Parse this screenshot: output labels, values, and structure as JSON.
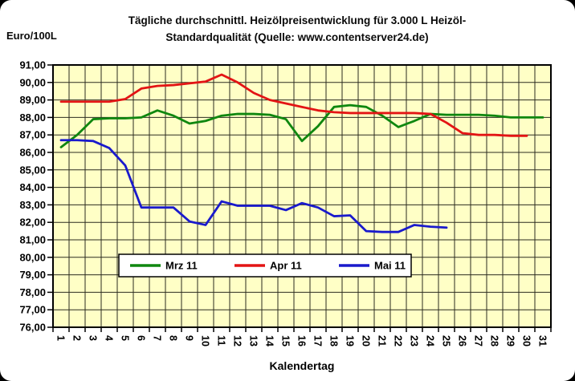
{
  "frame": {
    "outer_bg": "#000000",
    "card_bg": "#ffffff"
  },
  "chart_data": {
    "type": "line",
    "title": "Tägliche durchschnittl. Heizölpreisentwicklung für 3.000 L Heizöl-Standardqualität (Quelle: www.contentserver24.de)",
    "title_lines": [
      "Tägliche durchschnittl. Heizölpreisentwicklung für 3.000 L Heizöl-",
      "Standardqualität (Quelle: www.contentserver24.de)"
    ],
    "xlabel": "Kalendertag",
    "ylabel": "Euro/100L",
    "ylim": [
      76,
      91
    ],
    "ytick_step": 1,
    "y_tick_labels": [
      "91,00",
      "90,00",
      "89,00",
      "88,00",
      "87,00",
      "86,00",
      "85,00",
      "84,00",
      "83,00",
      "82,00",
      "81,00",
      "80,00",
      "79,00",
      "78,00",
      "77,00",
      "76,00"
    ],
    "x_categories": [
      1,
      2,
      3,
      4,
      5,
      6,
      7,
      8,
      9,
      10,
      11,
      12,
      13,
      14,
      15,
      16,
      17,
      18,
      19,
      20,
      21,
      22,
      23,
      24,
      25,
      26,
      27,
      28,
      29,
      30,
      31
    ],
    "grid": true,
    "plot_bg": "#ffffc6",
    "gridline_color": "#2b2b20",
    "legend_position": "inside-bottom-center",
    "series": [
      {
        "name": "Mrz 11",
        "color": "#0f870f",
        "values": [
          86.3,
          87.0,
          87.9,
          87.95,
          87.95,
          88.0,
          88.4,
          88.1,
          87.65,
          87.8,
          88.1,
          88.2,
          88.2,
          88.15,
          87.9,
          86.65,
          87.5,
          88.6,
          88.7,
          88.6,
          88.1,
          87.45,
          87.8,
          88.2,
          88.15,
          88.15,
          88.15,
          88.1,
          88.0,
          88.0,
          88.0
        ]
      },
      {
        "name": "Apr 11",
        "color": "#e31414",
        "values": [
          88.9,
          88.9,
          88.9,
          88.9,
          89.05,
          89.65,
          89.8,
          89.85,
          89.95,
          90.05,
          90.45,
          90.0,
          89.4,
          89.0,
          88.8,
          88.6,
          88.4,
          88.3,
          88.25,
          88.25,
          88.25,
          88.25,
          88.25,
          88.2,
          87.7,
          87.1,
          87.0,
          87.0,
          86.95,
          86.95
        ]
      },
      {
        "name": "Mai 11",
        "color": "#1a1acc",
        "values": [
          86.7,
          86.7,
          86.65,
          86.25,
          85.25,
          82.85,
          82.85,
          82.85,
          82.05,
          81.85,
          83.2,
          82.95,
          82.95,
          82.95,
          82.7,
          83.1,
          82.85,
          82.35,
          82.4,
          81.5,
          81.45,
          81.45,
          81.85,
          81.75,
          81.7
        ]
      }
    ]
  }
}
